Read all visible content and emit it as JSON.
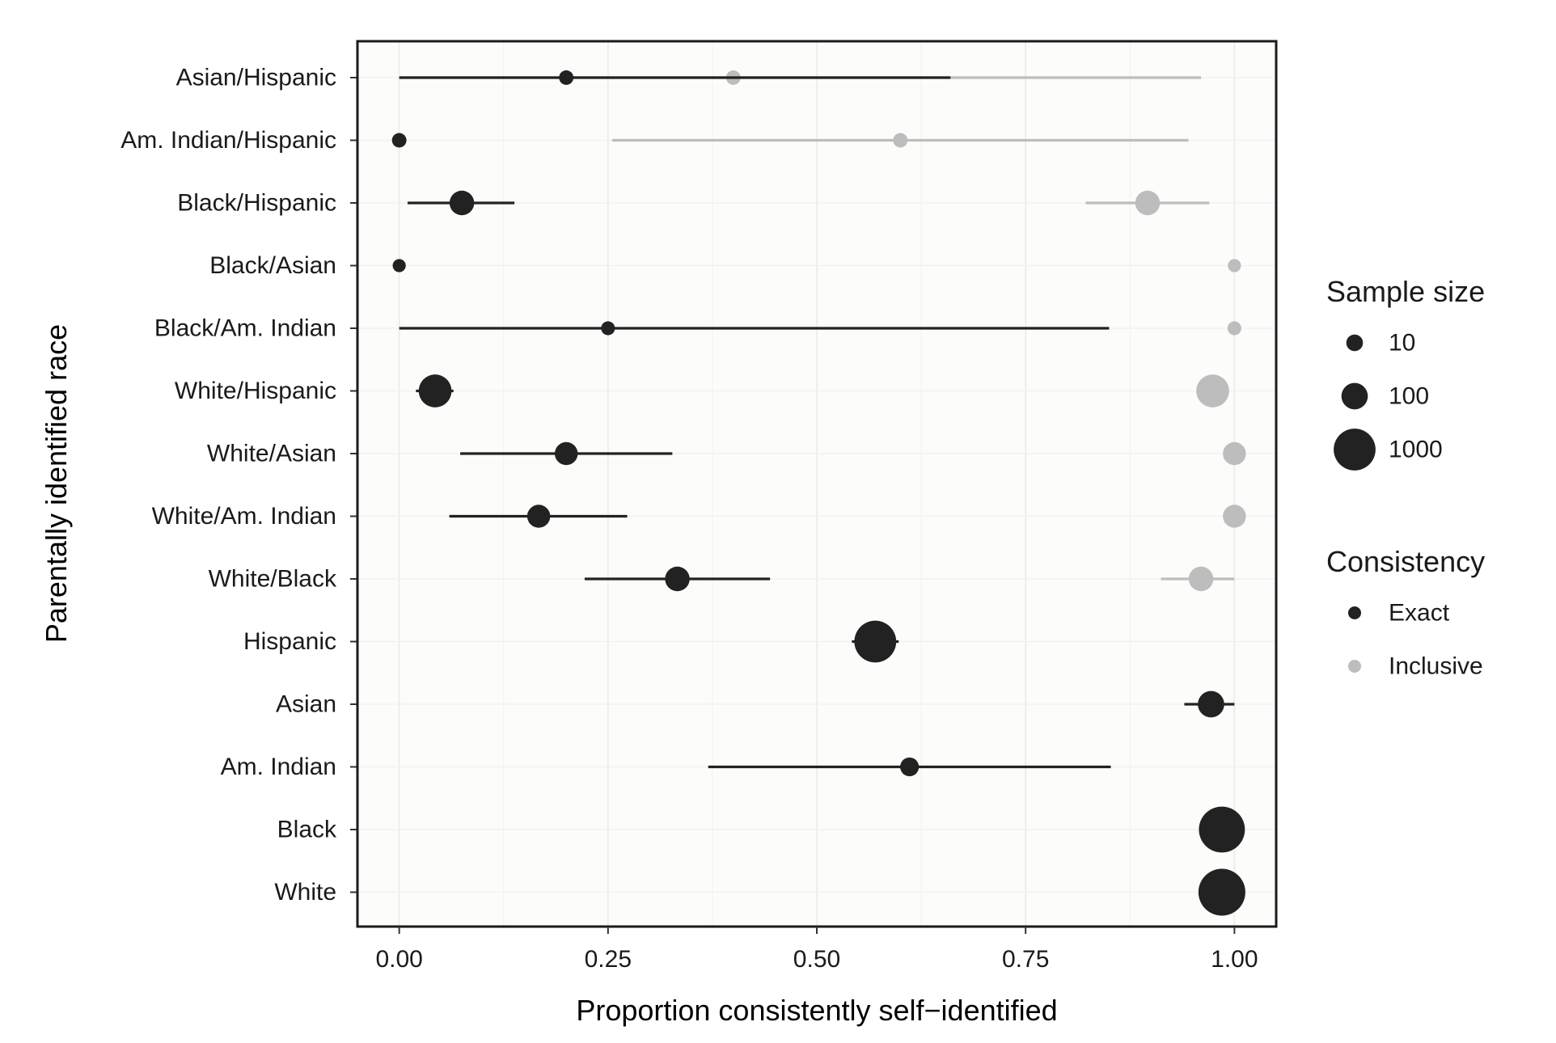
{
  "chart_data": {
    "type": "scatter",
    "subtype": "dot-and-whisker",
    "xlabel": "Proportion consistently self−identified",
    "ylabel": "Parentally identified race",
    "xlim": [
      -0.05,
      1.05
    ],
    "x_ticks": [
      "0.00",
      "0.25",
      "0.50",
      "0.75",
      "1.00"
    ],
    "x_tick_values": [
      0,
      0.25,
      0.5,
      0.75,
      1.0
    ],
    "grid": true,
    "legend_position": "right",
    "categories": [
      "Asian/Hispanic",
      "Am. Indian/Hispanic",
      "Black/Hispanic",
      "Black/Asian",
      "Black/Am. Indian",
      "White/Hispanic",
      "White/Asian",
      "White/Am. Indian",
      "White/Black",
      "Hispanic",
      "Asian",
      "Am. Indian",
      "Black",
      "White"
    ],
    "series": [
      {
        "name": "Exact",
        "color": "#222222",
        "points": [
          {
            "category": "Asian/Hispanic",
            "x": 0.2,
            "lo": 0.0,
            "hi": 0.66,
            "n": 5
          },
          {
            "category": "Am. Indian/Hispanic",
            "x": 0.0,
            "lo": 0.0,
            "hi": 0.0,
            "n": 5
          },
          {
            "category": "Black/Hispanic",
            "x": 0.075,
            "lo": 0.01,
            "hi": 0.138,
            "n": 70
          },
          {
            "category": "Black/Asian",
            "x": 0.0,
            "lo": 0.0,
            "hi": 0.0,
            "n": 3
          },
          {
            "category": "Black/Am. Indian",
            "x": 0.25,
            "lo": 0.0,
            "hi": 0.85,
            "n": 4
          },
          {
            "category": "White/Hispanic",
            "x": 0.043,
            "lo": 0.02,
            "hi": 0.065,
            "n": 300
          },
          {
            "category": "White/Asian",
            "x": 0.2,
            "lo": 0.073,
            "hi": 0.327,
            "n": 50
          },
          {
            "category": "White/Am. Indian",
            "x": 0.167,
            "lo": 0.06,
            "hi": 0.273,
            "n": 50
          },
          {
            "category": "White/Black",
            "x": 0.333,
            "lo": 0.222,
            "hi": 0.444,
            "n": 70
          },
          {
            "category": "Hispanic",
            "x": 0.57,
            "lo": 0.542,
            "hi": 0.598,
            "n": 1000
          },
          {
            "category": "Asian",
            "x": 0.972,
            "lo": 0.94,
            "hi": 1.0,
            "n": 100
          },
          {
            "category": "Am. Indian",
            "x": 0.611,
            "lo": 0.37,
            "hi": 0.852,
            "n": 18
          },
          {
            "category": "Black",
            "x": 0.985,
            "lo": 0.979,
            "hi": 0.991,
            "n": 1600
          },
          {
            "category": "White",
            "x": 0.985,
            "lo": 0.982,
            "hi": 0.988,
            "n": 4000
          }
        ]
      },
      {
        "name": "Inclusive",
        "color": "#bdbdbd",
        "points": [
          {
            "category": "Asian/Hispanic",
            "x": 0.4,
            "lo": 0.0,
            "hi": 0.96,
            "n": 5
          },
          {
            "category": "Am. Indian/Hispanic",
            "x": 0.6,
            "lo": 0.255,
            "hi": 0.945,
            "n": 5
          },
          {
            "category": "Black/Hispanic",
            "x": 0.896,
            "lo": 0.822,
            "hi": 0.97,
            "n": 70
          },
          {
            "category": "Black/Asian",
            "x": 1.0,
            "lo": 1.0,
            "hi": 1.0,
            "n": 3
          },
          {
            "category": "Black/Am. Indian",
            "x": 1.0,
            "lo": 1.0,
            "hi": 1.0,
            "n": 4
          },
          {
            "category": "White/Hispanic",
            "x": 0.974,
            "lo": 0.958,
            "hi": 0.99,
            "n": 300
          },
          {
            "category": "White/Asian",
            "x": 1.0,
            "lo": 1.0,
            "hi": 1.0,
            "n": 50
          },
          {
            "category": "White/Am. Indian",
            "x": 1.0,
            "lo": 1.0,
            "hi": 1.0,
            "n": 50
          },
          {
            "category": "White/Black",
            "x": 0.96,
            "lo": 0.912,
            "hi": 1.0,
            "n": 70
          }
        ]
      }
    ],
    "legend": {
      "size_title": "Sample size",
      "size_items": [
        {
          "label": "10",
          "n": 10
        },
        {
          "label": "100",
          "n": 100
        },
        {
          "label": "1000",
          "n": 1000
        }
      ],
      "color_title": "Consistency",
      "color_items": [
        {
          "label": "Exact",
          "color": "#222222"
        },
        {
          "label": "Inclusive",
          "color": "#bdbdbd"
        }
      ]
    }
  }
}
